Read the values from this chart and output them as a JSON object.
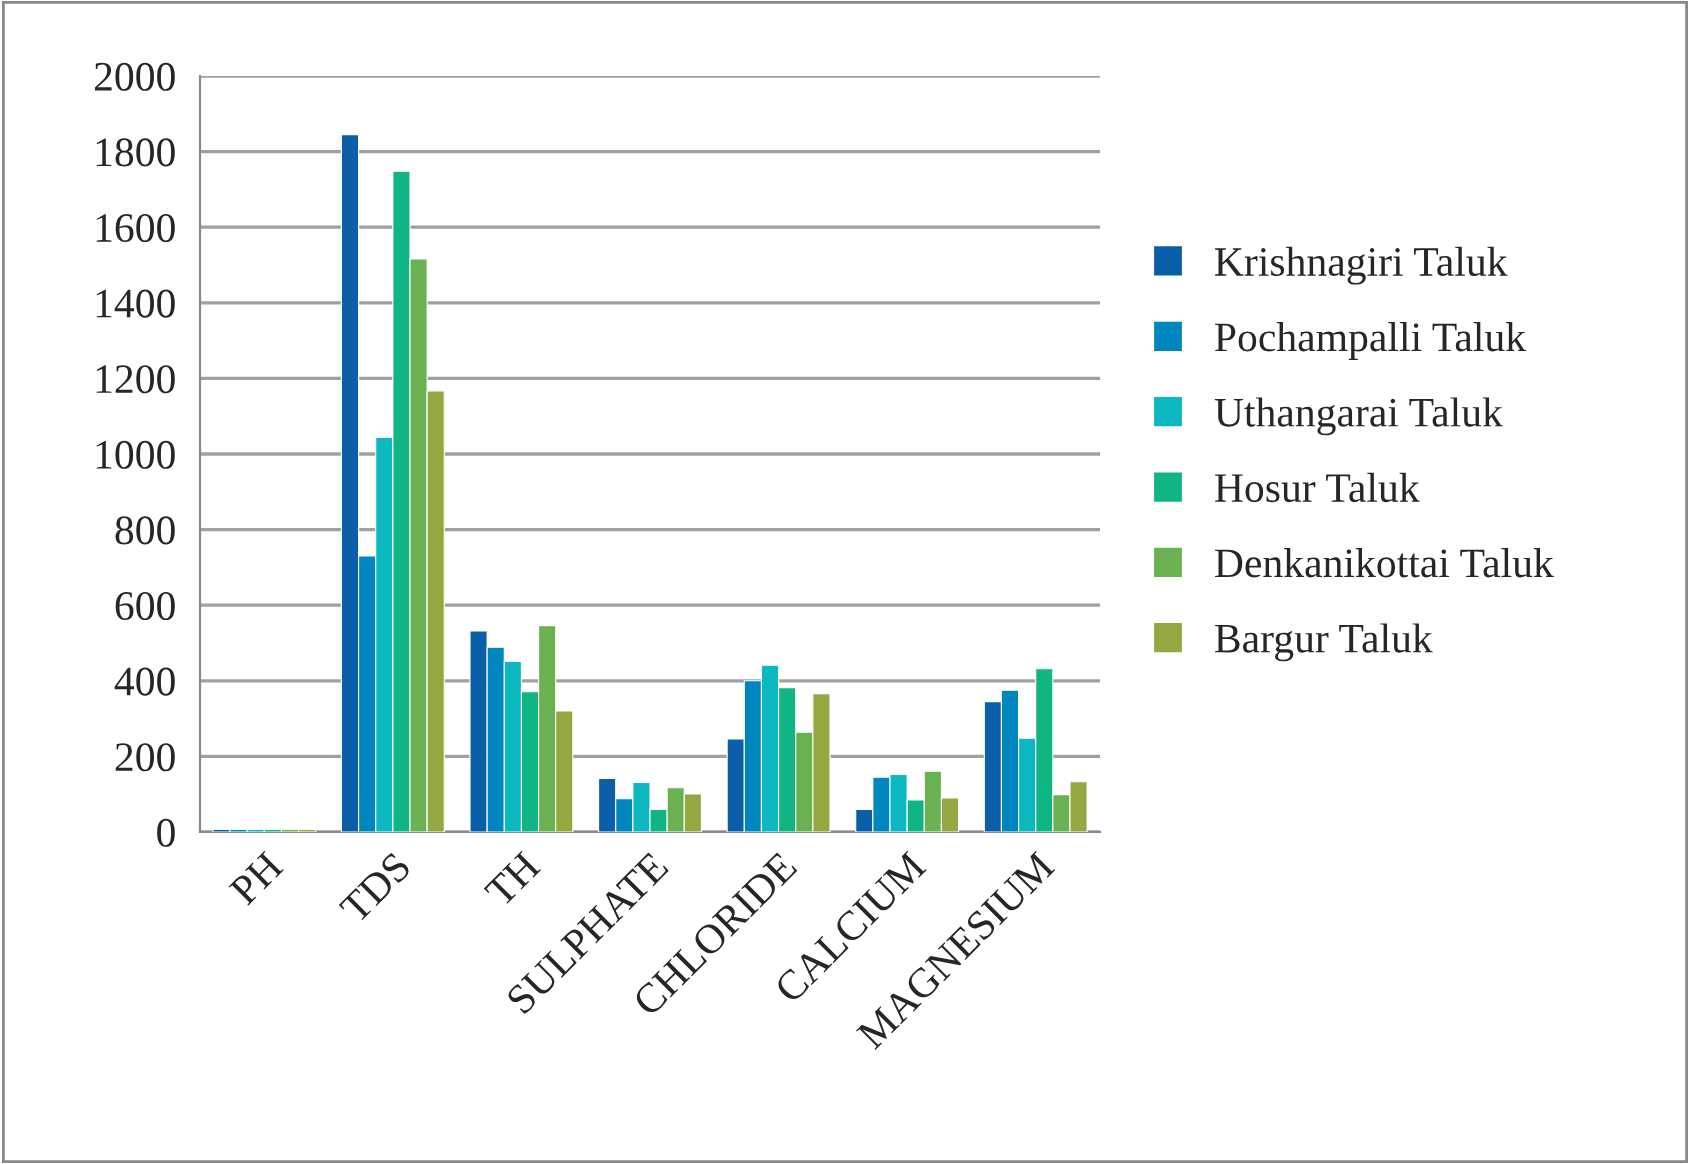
{
  "chart_data": {
    "type": "bar",
    "categories": [
      "PH",
      "TDS",
      "TH",
      "SULPHATE",
      "CHLORIDE",
      "CALCIUM",
      "MAGNESIUM"
    ],
    "series": [
      {
        "name": "Krishnagiri Taluk",
        "color": "#0b5ea8",
        "values": [
          7,
          1845,
          532,
          142,
          246,
          60,
          345
        ]
      },
      {
        "name": "Pochampalli Taluk",
        "color": "#0086be",
        "values": [
          7,
          730,
          489,
          88,
          400,
          145,
          375
        ]
      },
      {
        "name": "Uthangarai Taluk",
        "color": "#0bb8c0",
        "values": [
          7,
          1044,
          451,
          131,
          441,
          152,
          248
        ]
      },
      {
        "name": "Hosur Taluk",
        "color": "#10b584",
        "values": [
          7,
          1748,
          371,
          60,
          382,
          85,
          432
        ]
      },
      {
        "name": "Denkanikottai Taluk",
        "color": "#6ab152",
        "values": [
          7,
          1516,
          546,
          117,
          264,
          161,
          99
        ]
      },
      {
        "name": "Bargur Taluk",
        "color": "#94a842",
        "values": [
          7,
          1167,
          320,
          101,
          366,
          90,
          133
        ]
      }
    ],
    "ylim": [
      0,
      2000
    ],
    "yticks": [
      0,
      200,
      400,
      600,
      800,
      1000,
      1200,
      1400,
      1600,
      1800,
      2000
    ],
    "grid": "y",
    "legend": "right"
  }
}
